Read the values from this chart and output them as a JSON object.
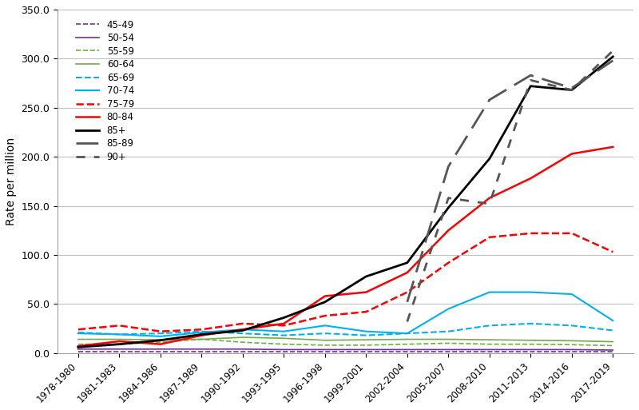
{
  "x_labels": [
    "1978-1980",
    "1981-1983",
    "1984-1986",
    "1987-1989",
    "1990-1992",
    "1993-1995",
    "1996-1998",
    "1999-2001",
    "2002-2004",
    "2005-2007",
    "2008-2010",
    "2011-2013",
    "2014-2016",
    "2017-2019"
  ],
  "ylabel": "Rate per million",
  "ylim": [
    0,
    350
  ],
  "yticks": [
    0.0,
    50.0,
    100.0,
    150.0,
    200.0,
    250.0,
    300.0,
    350.0
  ],
  "series": [
    {
      "label": "45-49",
      "color": "#7030a0",
      "linestyle": "dashed",
      "linewidth": 1.2,
      "data": [
        1.5,
        1.5,
        1.5,
        1.5,
        1.5,
        1.5,
        1.5,
        1.5,
        1.5,
        1.5,
        1.5,
        1.5,
        1.5,
        1.5
      ]
    },
    {
      "label": "50-54",
      "color": "#7030a0",
      "linestyle": "solid",
      "linewidth": 1.2,
      "data": [
        4.0,
        4.0,
        4.0,
        4.0,
        4.0,
        3.5,
        3.5,
        3.5,
        3.5,
        3.5,
        3.5,
        3.5,
        3.5,
        3.0
      ]
    },
    {
      "label": "55-59",
      "color": "#70ad47",
      "linestyle": "dashed",
      "linewidth": 1.2,
      "data": [
        9.0,
        9.0,
        11.0,
        14.0,
        11.0,
        9.0,
        8.0,
        8.0,
        9.0,
        10.0,
        9.0,
        9.0,
        8.5,
        7.5
      ]
    },
    {
      "label": "60-64",
      "color": "#70ad47",
      "linestyle": "solid",
      "linewidth": 1.2,
      "data": [
        14.0,
        14.0,
        13.5,
        14.0,
        16.0,
        15.0,
        13.0,
        13.5,
        14.0,
        14.0,
        13.5,
        13.0,
        12.5,
        11.5
      ]
    },
    {
      "label": "65-69",
      "color": "#00b0f0",
      "linestyle": "dashed",
      "linewidth": 1.5,
      "data": [
        21.0,
        19.0,
        20.0,
        22.0,
        20.0,
        18.0,
        20.0,
        18.0,
        20.0,
        22.0,
        28.0,
        30.0,
        28.0,
        23.0
      ]
    },
    {
      "label": "70-74",
      "color": "#00b0f0",
      "linestyle": "solid",
      "linewidth": 1.5,
      "data": [
        20.0,
        19.0,
        17.0,
        21.0,
        24.0,
        22.0,
        28.0,
        22.0,
        20.0,
        45.0,
        62.0,
        62.0,
        60.0,
        33.0
      ]
    },
    {
      "label": "75-79",
      "color": "#ff0000",
      "linestyle": "dashed",
      "linewidth": 1.8,
      "data": [
        24.0,
        28.0,
        22.0,
        24.0,
        30.0,
        28.0,
        38.0,
        42.0,
        62.0,
        92.0,
        118.0,
        122.0,
        122.0,
        103.0
      ]
    },
    {
      "label": "80-84",
      "color": "#ff0000",
      "linestyle": "solid",
      "linewidth": 1.8,
      "data": [
        7.0,
        12.0,
        9.0,
        18.0,
        24.0,
        30.0,
        58.0,
        62.0,
        82.0,
        125.0,
        158.0,
        178.0,
        203.0,
        210.0
      ]
    },
    {
      "label": "85+",
      "color": "#000000",
      "linestyle": "solid",
      "linewidth": 2.0,
      "data": [
        6.0,
        9.0,
        13.0,
        19.0,
        23.0,
        36.0,
        52.0,
        78.0,
        92.0,
        148.0,
        198.0,
        272.0,
        268.0,
        302.0
      ]
    },
    {
      "label": "85-89",
      "color": "#555555",
      "linestyle": "dashed",
      "linewidth": 2.0,
      "dashes": [
        10,
        4
      ],
      "data": [
        null,
        null,
        null,
        null,
        null,
        null,
        null,
        null,
        52.0,
        190.0,
        258.0,
        283.0,
        270.0,
        298.0
      ]
    },
    {
      "label": "90+",
      "color": "#555555",
      "linestyle": "dotted",
      "linewidth": 2.0,
      "dashes": [
        4,
        4
      ],
      "data": [
        null,
        null,
        null,
        null,
        null,
        null,
        null,
        null,
        32.0,
        158.0,
        152.0,
        278.0,
        268.0,
        308.0
      ]
    }
  ],
  "background_color": "#ffffff",
  "grid_color": "#c0c0c0",
  "legend_fontsize": 8.5,
  "axis_label_fontsize": 10
}
